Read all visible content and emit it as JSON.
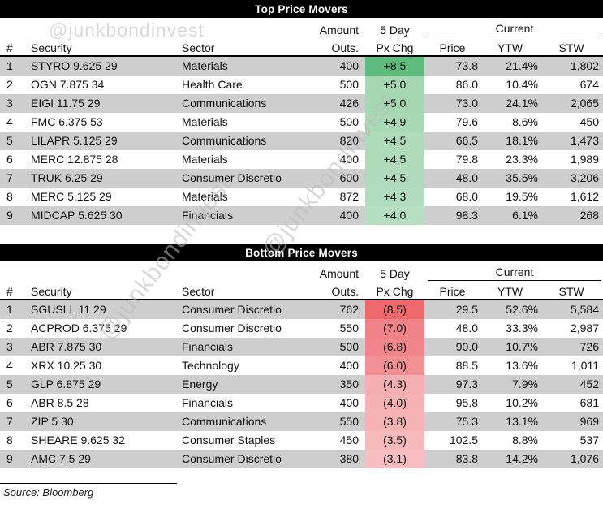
{
  "watermark": {
    "text": "@junkbondinvest"
  },
  "source": {
    "label": "Source: Bloomberg"
  },
  "colors": {
    "title_bar_bg": "#000000",
    "title_bar_text": "#ffffff",
    "row_stripe": "#cecece",
    "gain_strong": "#5ebc7e",
    "gain_light": "#b6dec1",
    "loss_strong": "#ee686c",
    "loss_light": "#f7bdc0"
  },
  "tables": [
    {
      "title": "Top Price Movers",
      "header": {
        "num": "#",
        "security": "Security",
        "sector": "Sector",
        "amount_l1": "Amount",
        "amount_l2": "Outs.",
        "pxchg_l1": "5 Day",
        "pxchg_l2": "Px Chg",
        "current": "Current",
        "price": "Price",
        "ytw": "YTW",
        "stw": "STW"
      },
      "rows": [
        {
          "num": "1",
          "security": "STYRO 9.625 29",
          "sector": "Materials",
          "amount": "400",
          "px_chg": "+8.5",
          "chg_bg": "#5ebc7e",
          "price": "73.8",
          "ytw": "21.4%",
          "stw": "1,802"
        },
        {
          "num": "2",
          "security": "OGN 7.875 34",
          "sector": "Health Care",
          "amount": "500",
          "px_chg": "+5.0",
          "chg_bg": "#a6d7b3",
          "price": "86.0",
          "ytw": "10.4%",
          "stw": "674"
        },
        {
          "num": "3",
          "security": "EIGI 11.75 29",
          "sector": "Communications",
          "amount": "426",
          "px_chg": "+5.0",
          "chg_bg": "#a6d7b3",
          "price": "73.0",
          "ytw": "24.1%",
          "stw": "2,065"
        },
        {
          "num": "4",
          "security": "FMC 6.375 53",
          "sector": "Materials",
          "amount": "500",
          "px_chg": "+4.9",
          "chg_bg": "#a9d8b5",
          "price": "79.6",
          "ytw": "8.6%",
          "stw": "450"
        },
        {
          "num": "5",
          "security": "LILAPR 5.125 29",
          "sector": "Communications",
          "amount": "820",
          "px_chg": "+4.5",
          "chg_bg": "#afdbba",
          "price": "66.5",
          "ytw": "18.1%",
          "stw": "1,473"
        },
        {
          "num": "6",
          "security": "MERC 12.875 28",
          "sector": "Materials",
          "amount": "400",
          "px_chg": "+4.5",
          "chg_bg": "#afdbba",
          "price": "79.8",
          "ytw": "23.3%",
          "stw": "1,989"
        },
        {
          "num": "7",
          "security": "TRUK 6.25 29",
          "sector": "Consumer Discretio",
          "amount": "600",
          "px_chg": "+4.5",
          "chg_bg": "#b0dbbc",
          "price": "48.0",
          "ytw": "35.5%",
          "stw": "3,206"
        },
        {
          "num": "8",
          "security": "MERC 5.125 29",
          "sector": "Materials",
          "amount": "872",
          "px_chg": "+4.3",
          "chg_bg": "#b2dcbe",
          "price": "68.0",
          "ytw": "19.5%",
          "stw": "1,612"
        },
        {
          "num": "9",
          "security": "MIDCAP 5.625 30",
          "sector": "Financials",
          "amount": "400",
          "px_chg": "+4.0",
          "chg_bg": "#b6dec1",
          "price": "98.3",
          "ytw": "6.1%",
          "stw": "268"
        }
      ]
    },
    {
      "title": "Bottom Price Movers",
      "header": {
        "num": "#",
        "security": "Security",
        "sector": "Sector",
        "amount_l1": "Amount",
        "amount_l2": "Outs.",
        "pxchg_l1": "5 Day",
        "pxchg_l2": "Px Chg",
        "current": "Current",
        "price": "Price",
        "ytw": "YTW",
        "stw": "STW"
      },
      "rows": [
        {
          "num": "1",
          "security": "SGUSLL 11 29",
          "sector": "Consumer Discretio",
          "amount": "762",
          "px_chg": "(8.5)",
          "chg_bg": "#ee686c",
          "price": "29.5",
          "ytw": "52.6%",
          "stw": "5,584"
        },
        {
          "num": "2",
          "security": "ACPROD 6.375 29",
          "sector": "Consumer Discretio",
          "amount": "550",
          "px_chg": "(7.0)",
          "chg_bg": "#f08388",
          "price": "48.0",
          "ytw": "33.3%",
          "stw": "2,987"
        },
        {
          "num": "3",
          "security": "ABR 7.875 30",
          "sector": "Financials",
          "amount": "500",
          "px_chg": "(6.8)",
          "chg_bg": "#f0868b",
          "price": "90.0",
          "ytw": "10.7%",
          "stw": "726"
        },
        {
          "num": "4",
          "security": "XRX 10.25 30",
          "sector": "Technology",
          "amount": "400",
          "px_chg": "(6.0)",
          "chg_bg": "#f29094",
          "price": "88.5",
          "ytw": "13.6%",
          "stw": "1,011"
        },
        {
          "num": "5",
          "security": "GLP 6.875 29",
          "sector": "Energy",
          "amount": "350",
          "px_chg": "(4.3)",
          "chg_bg": "#f5aeb1",
          "price": "97.3",
          "ytw": "7.9%",
          "stw": "452"
        },
        {
          "num": "6",
          "security": "ABR 8.5 28",
          "sector": "Financials",
          "amount": "400",
          "px_chg": "(4.0)",
          "chg_bg": "#f5b1b4",
          "price": "95.8",
          "ytw": "10.2%",
          "stw": "681"
        },
        {
          "num": "7",
          "security": "ZIP 5 30",
          "sector": "Communications",
          "amount": "550",
          "px_chg": "(3.8)",
          "chg_bg": "#f5b3b6",
          "price": "75.3",
          "ytw": "13.1%",
          "stw": "969"
        },
        {
          "num": "8",
          "security": "SHEARE 9.625 32",
          "sector": "Consumer Staples",
          "amount": "450",
          "px_chg": "(3.5)",
          "chg_bg": "#f6b9bc",
          "price": "102.5",
          "ytw": "8.8%",
          "stw": "537"
        },
        {
          "num": "9",
          "security": "AMC 7.5 29",
          "sector": "Consumer Discretio",
          "amount": "380",
          "px_chg": "(3.1)",
          "chg_bg": "#f7bdc0",
          "price": "83.8",
          "ytw": "14.2%",
          "stw": "1,076"
        }
      ]
    }
  ],
  "chart_data": [
    {
      "type": "table",
      "title": "Top Price Movers",
      "columns": [
        "#",
        "Security",
        "Sector",
        "Amount Outs.",
        "5 Day Px Chg",
        "Current Price",
        "Current YTW",
        "Current STW"
      ],
      "rows": [
        [
          "1",
          "STYRO 9.625 29",
          "Materials",
          400,
          8.5,
          73.8,
          "21.4%",
          1802
        ],
        [
          "2",
          "OGN 7.875 34",
          "Health Care",
          500,
          5.0,
          86.0,
          "10.4%",
          674
        ],
        [
          "3",
          "EIGI 11.75 29",
          "Communications",
          426,
          5.0,
          73.0,
          "24.1%",
          2065
        ],
        [
          "4",
          "FMC 6.375 53",
          "Materials",
          500,
          4.9,
          79.6,
          "8.6%",
          450
        ],
        [
          "5",
          "LILAPR 5.125 29",
          "Communications",
          820,
          4.5,
          66.5,
          "18.1%",
          1473
        ],
        [
          "6",
          "MERC 12.875 28",
          "Materials",
          400,
          4.5,
          79.8,
          "23.3%",
          1989
        ],
        [
          "7",
          "TRUK 6.25 29",
          "Consumer Discretio",
          600,
          4.5,
          48.0,
          "35.5%",
          3206
        ],
        [
          "8",
          "MERC 5.125 29",
          "Materials",
          872,
          4.3,
          68.0,
          "19.5%",
          1612
        ],
        [
          "9",
          "MIDCAP 5.625 30",
          "Financials",
          400,
          4.0,
          98.3,
          "6.1%",
          268
        ]
      ]
    },
    {
      "type": "table",
      "title": "Bottom Price Movers",
      "columns": [
        "#",
        "Security",
        "Sector",
        "Amount Outs.",
        "5 Day Px Chg",
        "Current Price",
        "Current YTW",
        "Current STW"
      ],
      "rows": [
        [
          "1",
          "SGUSLL 11 29",
          "Consumer Discretio",
          762,
          -8.5,
          29.5,
          "52.6%",
          5584
        ],
        [
          "2",
          "ACPROD 6.375 29",
          "Consumer Discretio",
          550,
          -7.0,
          48.0,
          "33.3%",
          2987
        ],
        [
          "3",
          "ABR 7.875 30",
          "Financials",
          500,
          -6.8,
          90.0,
          "10.7%",
          726
        ],
        [
          "4",
          "XRX 10.25 30",
          "Technology",
          400,
          -6.0,
          88.5,
          "13.6%",
          1011
        ],
        [
          "5",
          "GLP 6.875 29",
          "Energy",
          350,
          -4.3,
          97.3,
          "7.9%",
          452
        ],
        [
          "6",
          "ABR 8.5 28",
          "Financials",
          400,
          -4.0,
          95.8,
          "10.2%",
          681
        ],
        [
          "7",
          "ZIP 5 30",
          "Communications",
          550,
          -3.8,
          75.3,
          "13.1%",
          969
        ],
        [
          "8",
          "SHEARE 9.625 32",
          "Consumer Staples",
          450,
          -3.5,
          102.5,
          "8.8%",
          537
        ],
        [
          "9",
          "AMC 7.5 29",
          "Consumer Discretio",
          380,
          -3.1,
          83.8,
          "14.2%",
          1076
        ]
      ]
    }
  ]
}
